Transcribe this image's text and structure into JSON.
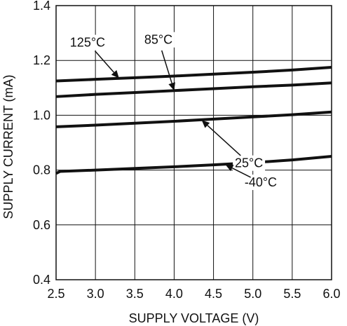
{
  "chart_data": {
    "type": "line",
    "title": "",
    "xlabel": "SUPPLY VOLTAGE (V)",
    "ylabel": "SUPPLY CURRENT (mA)",
    "xlim": [
      2.5,
      6.0
    ],
    "ylim": [
      0.4,
      1.4
    ],
    "x_ticks": [
      2.5,
      3.0,
      3.5,
      4.0,
      4.5,
      5.0,
      5.5,
      6.0
    ],
    "y_ticks": [
      0.4,
      0.6,
      0.8,
      1.0,
      1.2,
      1.4
    ],
    "x_tick_labels": [
      "2.5",
      "3.0",
      "3.5",
      "4.0",
      "4.5",
      "5.0",
      "5.5",
      "6.0"
    ],
    "y_tick_labels": [
      "0.4",
      "0.6",
      "0.8",
      "1.0",
      "1.2",
      "1.4"
    ],
    "grid": true,
    "series": [
      {
        "name": "125°C",
        "x": [
          2.5,
          3.0,
          3.5,
          4.0,
          4.5,
          5.0,
          5.5,
          6.0
        ],
        "values": [
          1.125,
          1.131,
          1.137,
          1.143,
          1.15,
          1.157,
          1.165,
          1.175
        ]
      },
      {
        "name": "85°C",
        "x": [
          2.5,
          3.0,
          3.5,
          4.0,
          4.5,
          5.0,
          5.5,
          6.0
        ],
        "values": [
          1.068,
          1.076,
          1.083,
          1.09,
          1.097,
          1.104,
          1.11,
          1.118
        ]
      },
      {
        "name": "25°C",
        "x": [
          2.5,
          3.0,
          3.5,
          4.0,
          4.5,
          5.0,
          5.5,
          6.0
        ],
        "values": [
          0.958,
          0.964,
          0.971,
          0.978,
          0.986,
          0.994,
          1.002,
          1.012
        ]
      },
      {
        "name": "-40°C",
        "x": [
          2.5,
          2.55,
          3.0,
          3.5,
          4.0,
          4.5,
          5.0,
          5.5,
          6.0
        ],
        "values": [
          0.788,
          0.795,
          0.8,
          0.806,
          0.812,
          0.819,
          0.827,
          0.837,
          0.85
        ]
      }
    ],
    "annotations": [
      {
        "label": "125°C",
        "text_x": 2.9,
        "text_y": 1.25,
        "tip_x": 3.3,
        "tip_y": 1.135
      },
      {
        "label": "85°C",
        "text_x": 3.8,
        "text_y": 1.26,
        "tip_x": 4.0,
        "tip_y": 1.09
      },
      {
        "label": "25°C",
        "text_x": 4.95,
        "text_y": 0.81,
        "tip_x": 4.35,
        "tip_y": 0.982
      },
      {
        "label": "-40°C",
        "text_x": 5.1,
        "text_y": 0.74,
        "tip_x": 4.65,
        "tip_y": 0.82
      }
    ]
  }
}
